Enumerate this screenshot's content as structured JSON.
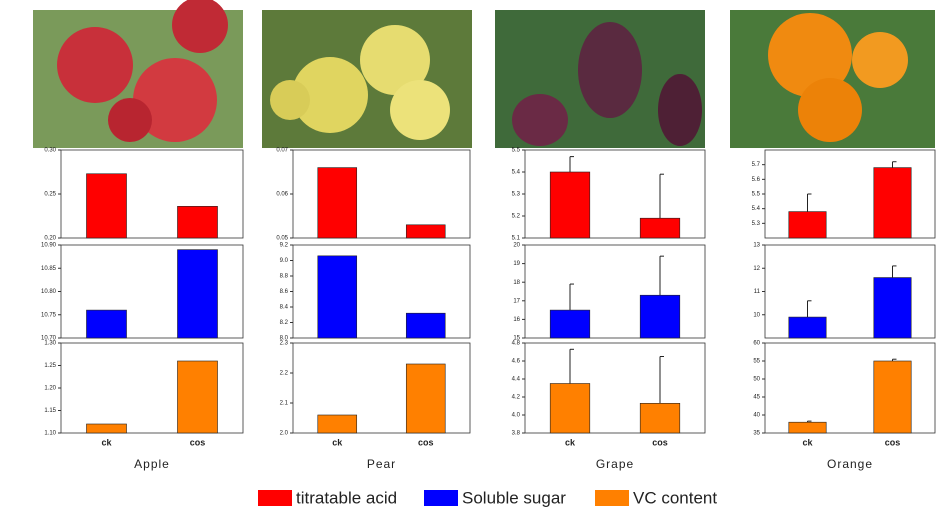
{
  "chart_data": [
    {
      "type": "bar",
      "values": [
        0.273,
        0.236
      ],
      "color": "#ff0000",
      "ylim": [
        0.2,
        0.3
      ],
      "yticks": [
        {
          "value": 0.2,
          "label": "0.20"
        },
        0.25,
        {
          "value": 0.3,
          "label": "0.30"
        }
      ]
    },
    {
      "type": "bar",
      "values": [
        0.066,
        0.053
      ],
      "color": "#ff0000",
      "ylim": [
        0.05,
        0.07
      ],
      "yticks": [
        0.05,
        0.06,
        0.07
      ]
    },
    {
      "type": "bar",
      "values": [
        5.4,
        5.19
      ],
      "error": [
        0.07,
        0.2
      ],
      "color": "#ff0000",
      "ylim": [
        5.1,
        5.5
      ],
      "yticks": [
        5.1,
        5.2,
        5.3,
        5.4,
        5.5
      ]
    },
    {
      "type": "bar",
      "values": [
        5.38,
        5.68
      ],
      "error": [
        0.12,
        0.04
      ],
      "color": "#ff0000",
      "ylim": [
        5.2,
        5.8
      ],
      "yticks": [
        5.3,
        5.4,
        5.5,
        5.6,
        5.7
      ]
    },
    {
      "type": "bar",
      "values": [
        10.76,
        10.89
      ],
      "color": "#0000ff",
      "ylim": [
        10.7,
        10.9
      ],
      "yticks": [
        {
          "value": 10.7,
          "label": "10.70"
        },
        10.75,
        {
          "value": 10.8,
          "label": "10.80"
        },
        10.85,
        {
          "value": 10.9,
          "label": "10.90"
        }
      ]
    },
    {
      "type": "bar",
      "values": [
        9.06,
        8.32
      ],
      "color": "#0000ff",
      "ylim": [
        8.0,
        9.2
      ],
      "yticks": [
        {
          "value": 8,
          "label": "8.0"
        },
        8.2,
        8.4,
        8.6,
        8.8,
        {
          "value": 9,
          "label": "9.0"
        },
        9.2
      ]
    },
    {
      "type": "bar",
      "values": [
        16.5,
        17.3
      ],
      "error": [
        1.4,
        2.1
      ],
      "color": "#0000ff",
      "ylim": [
        15,
        20
      ],
      "yticks": [
        15,
        16,
        17,
        18,
        19,
        20
      ]
    },
    {
      "type": "bar",
      "values": [
        9.9,
        11.6
      ],
      "error": [
        0.7,
        0.5
      ],
      "color": "#0000ff",
      "ylim": [
        9,
        13
      ],
      "yticks": [
        10,
        11,
        12,
        13
      ]
    },
    {
      "type": "bar",
      "values": [
        1.12,
        1.26
      ],
      "color": "#ff8000",
      "ylim": [
        1.1,
        1.3
      ],
      "yticks": [
        {
          "value": 1.1,
          "label": "1.10"
        },
        1.15,
        {
          "value": 1.2,
          "label": "1.20"
        },
        1.25,
        {
          "value": 1.3,
          "label": "1.30"
        }
      ],
      "categories": [
        "ck",
        "cos"
      ],
      "xlabel": "Apple"
    },
    {
      "type": "bar",
      "values": [
        2.06,
        2.23
      ],
      "color": "#ff8000",
      "ylim": [
        2.0,
        2.3
      ],
      "yticks": [
        {
          "value": 2,
          "label": "2.0"
        },
        2.1,
        2.2,
        2.3
      ],
      "categories": [
        "ck",
        "cos"
      ],
      "xlabel": "Pear"
    },
    {
      "type": "bar",
      "values": [
        4.35,
        4.13
      ],
      "error": [
        0.38,
        0.52
      ],
      "color": "#ff8000",
      "ylim": [
        3.8,
        4.8
      ],
      "yticks": [
        3.8,
        {
          "value": 4,
          "label": "4.0"
        },
        4.2,
        4.4,
        4.6,
        4.8
      ],
      "categories": [
        "ck",
        "cos"
      ],
      "xlabel": "Grape"
    },
    {
      "type": "bar",
      "values": [
        38,
        55
      ],
      "error": [
        0.3,
        0.5
      ],
      "color": "#ff8000",
      "ylim": [
        35,
        60
      ],
      "yticks": [
        35,
        40,
        45,
        50,
        55,
        60
      ],
      "categories": [
        "ck",
        "cos"
      ],
      "xlabel": "Orange"
    }
  ],
  "legend": [
    {
      "name": "titratable acid",
      "color": "#ff0000"
    },
    {
      "name": "Soluble sugar",
      "color": "#0000ff"
    },
    {
      "name": "VC content",
      "color": "#ff8000"
    }
  ]
}
